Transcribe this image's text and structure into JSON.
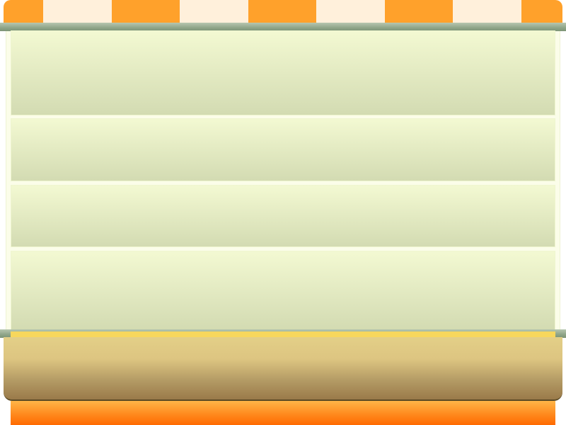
{
  "colors": {
    "awning_orange": "#ffa12b",
    "awning_cream": "#fff0db",
    "rail": "#8fa589",
    "shelf_top": "#f3f9d2",
    "shelf_bottom": "#d3dbb2",
    "counter_top": "#e3cf87",
    "counter_bottom": "#9a7a4a",
    "base_orange": "#ff8a1e"
  },
  "awning_pattern": [
    "orange",
    "cream",
    "orange",
    "cream",
    "orange",
    "cream",
    "orange",
    "cream",
    "orange"
  ],
  "shelves": [
    {
      "name": "shelf-1"
    },
    {
      "name": "shelf-2"
    },
    {
      "name": "shelf-3"
    },
    {
      "name": "shelf-4"
    }
  ]
}
